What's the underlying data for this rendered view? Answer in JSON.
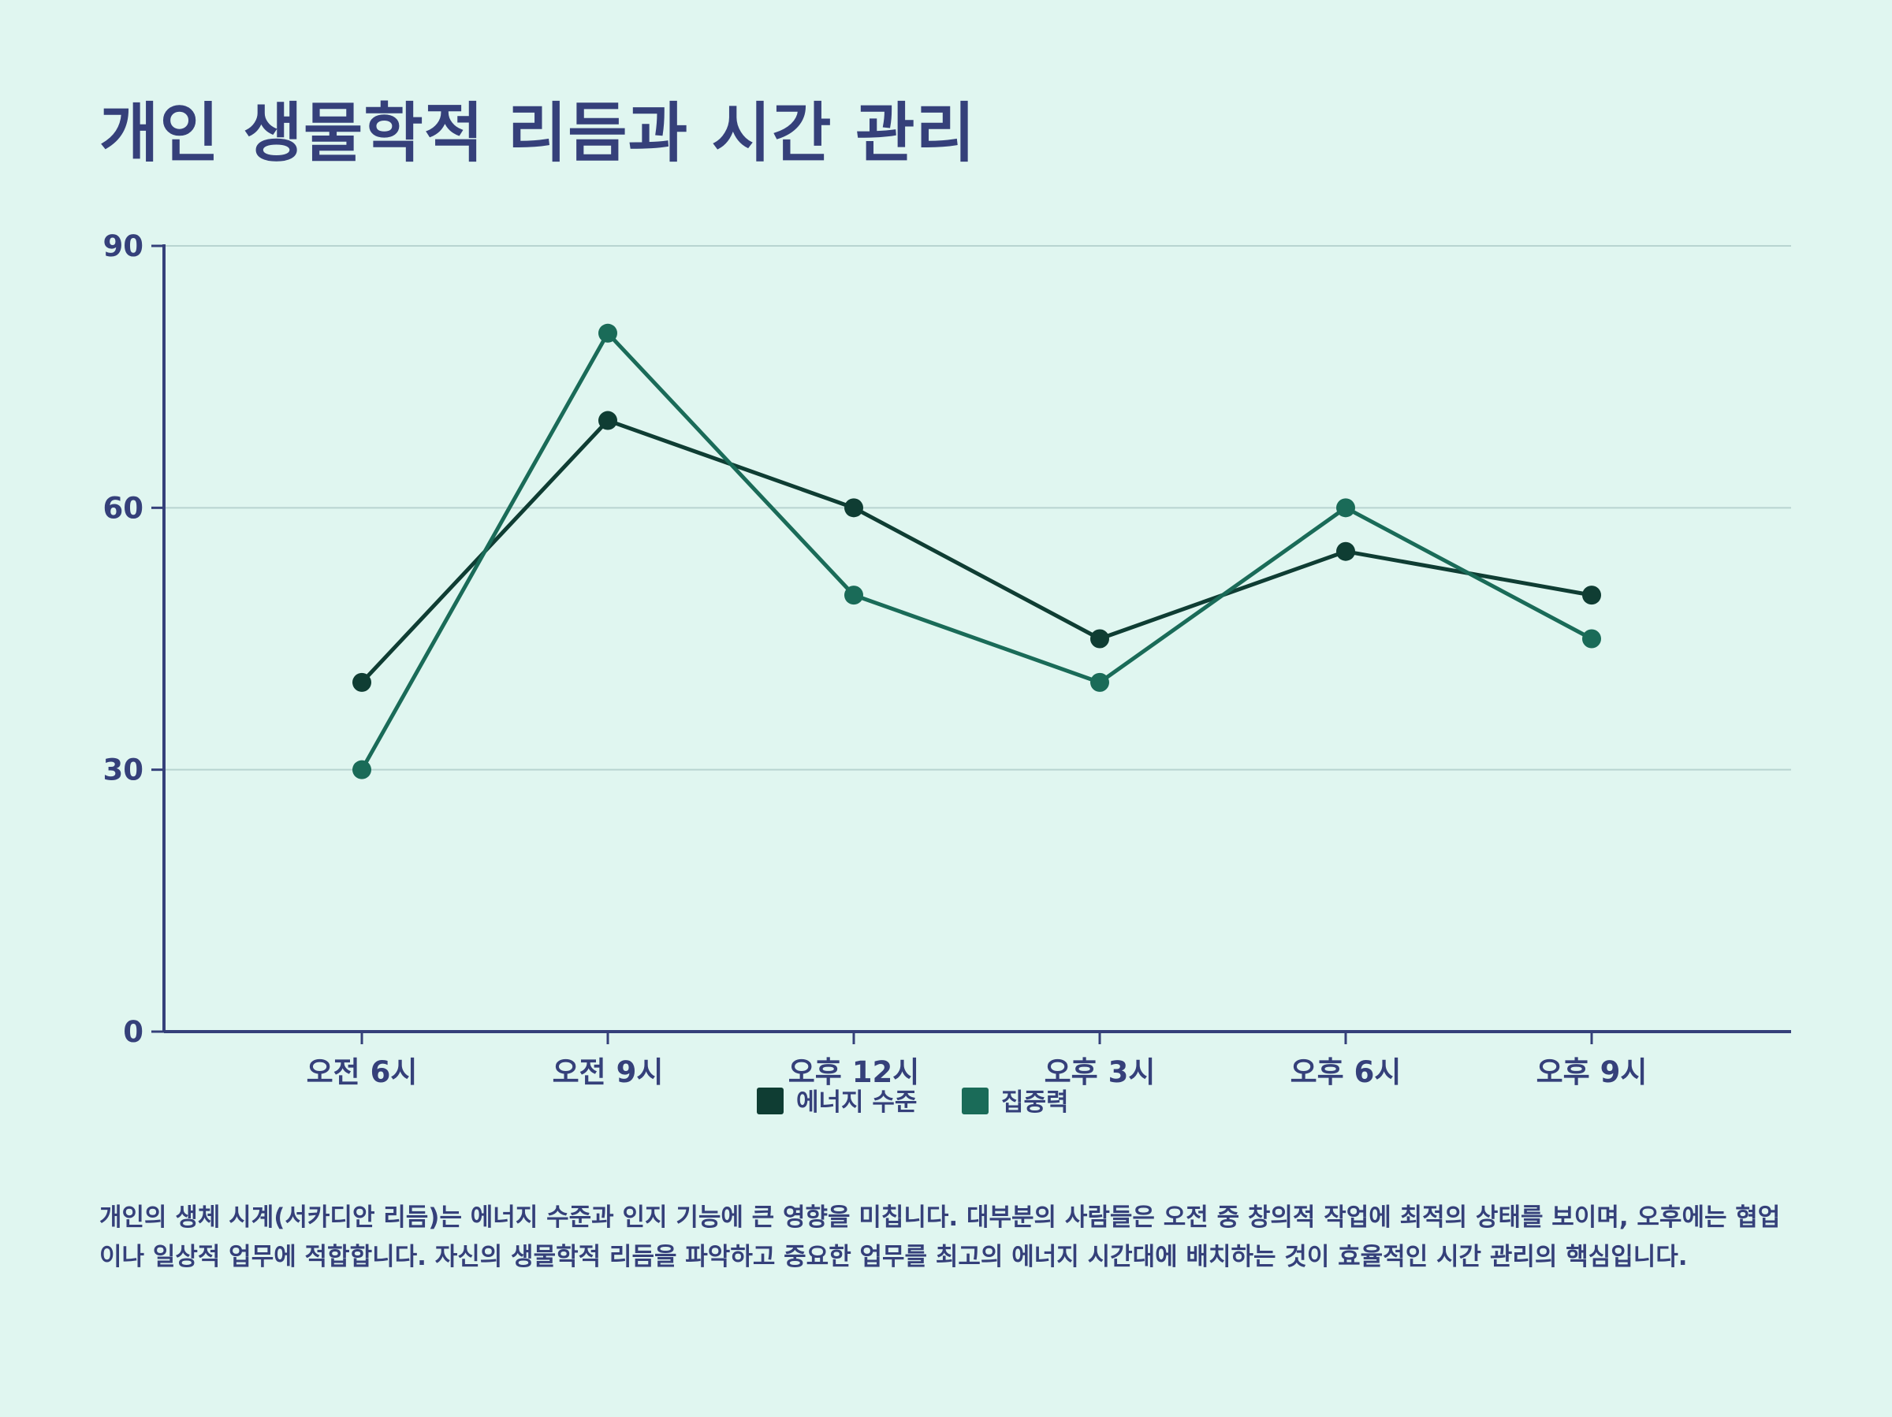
{
  "title": "개인 생물학적 리듬과 시간 관리",
  "description": "개인의 생체 시계(서카디안 리듬)는 에너지 수준과 인지 기능에 큰 영향을 미칩니다. 대부분의 사람들은 오전 중 창의적 작업에 최적의 상태를 보이며, 오후에는 협업이나 일상적 업무에 적합합니다. 자신의 생물학적 리듬을 파악하고 중요한 업무를 최고의 에너지 시간대에 배치하는 것이 효율적인 시간 관리의 핵심입니다.",
  "colors": {
    "background": "#e0f6f0",
    "text": "#35407a",
    "axis": "#35407a",
    "grid": "#b8d4d0"
  },
  "chart_data": {
    "type": "line",
    "categories": [
      "오전 6시",
      "오전 9시",
      "오후 12시",
      "오후 3시",
      "오후 6시",
      "오후 9시"
    ],
    "ylim": [
      0,
      90
    ],
    "yticks": [
      0,
      30,
      60,
      90
    ],
    "grid": true,
    "legend_position": "bottom-center",
    "series": [
      {
        "name": "에너지 수준",
        "color": "#0f3d33",
        "values": [
          40,
          70,
          60,
          45,
          55,
          50
        ]
      },
      {
        "name": "집중력",
        "color": "#1a6b58",
        "values": [
          30,
          80,
          50,
          40,
          60,
          45
        ]
      }
    ]
  }
}
